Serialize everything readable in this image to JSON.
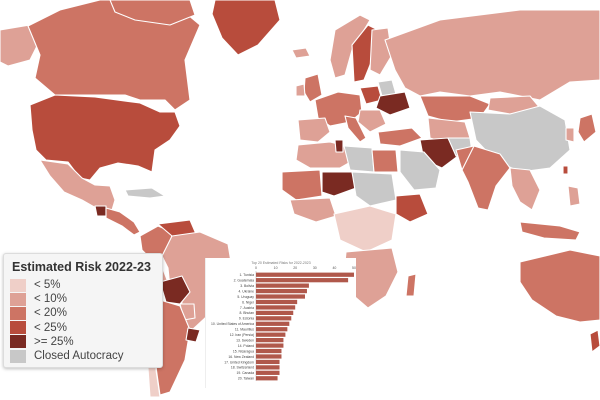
{
  "legend": {
    "title": "Estimated Risk 2022-23",
    "items": [
      {
        "label": "< 5%",
        "color": "#efcfc8"
      },
      {
        "label": "< 10%",
        "color": "#dea196"
      },
      {
        "label": "< 20%",
        "color": "#cd7464"
      },
      {
        "label": "< 25%",
        "color": "#b84c3c"
      },
      {
        "label": ">= 25%",
        "color": "#7a2a22"
      },
      {
        "label": "Closed Autocracy",
        "color": "#c8c8c8"
      }
    ]
  },
  "inset_chart": {
    "title": "Top 20 Estimated Risks for 2022-2023",
    "bar_color": "#b0584b",
    "chart_data": {
      "type": "bar",
      "orientation": "horizontal",
      "categories": [
        "1. Tunisia",
        "2. Guatemala",
        "3. Bolivia",
        "4. Ukraine",
        "5. Uruguay",
        "6. Niger",
        "7. Austria",
        "8. Bhutan",
        "9. Estonia",
        "10. United States of America",
        "11. Mauritius",
        "12. Iran (Persia)",
        "13. Sweden",
        "14. Poland",
        "15. Nicaragua",
        "16. New Zealand",
        "17. United Kingdom",
        "18. Switzerland",
        "19. Canada",
        "20. Taiwan"
      ],
      "values": [
        50,
        47,
        27,
        26,
        25,
        21,
        20,
        19,
        18,
        17,
        16,
        15,
        14,
        14,
        13,
        13,
        12,
        12,
        12,
        11
      ],
      "xlim": [
        0,
        50
      ],
      "xticks": [
        "0",
        "10",
        "20",
        "30",
        "40",
        "50"
      ]
    }
  }
}
